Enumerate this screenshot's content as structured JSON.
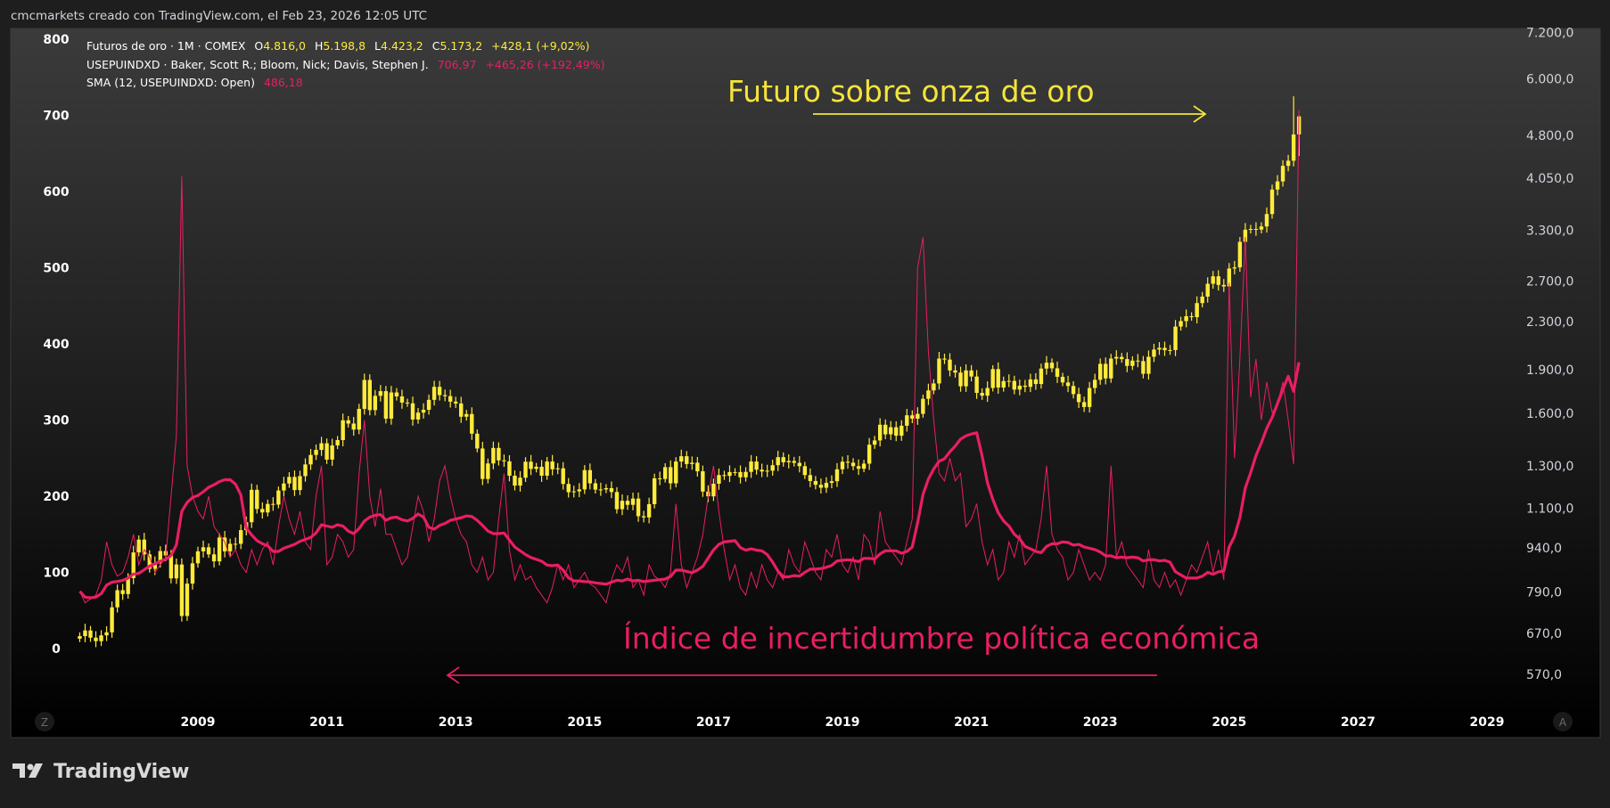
{
  "header": {
    "credit": "cmcmarkets creado con TradingView.com, el Feb 23, 2026 12:05 UTC"
  },
  "legend": {
    "gold": {
      "name": "Futuros de oro · 1M · COMEX",
      "o_label": "O",
      "o": "4.816,0",
      "h_label": "H",
      "h": "5.198,8",
      "l_label": "L",
      "l": "4.423,2",
      "c_label": "C",
      "c": "5.173,2",
      "change": "+428,1 (+9,02%)"
    },
    "epu": {
      "name": "USEPUINDXD · Baker, Scott R.; Bloom, Nick; Davis, Stephen J.",
      "value": "706,97",
      "change": "+465,26 (+192,49%)"
    },
    "sma": {
      "name": "SMA (12, USEPUINDXD: Open)",
      "value": "486,18"
    }
  },
  "annotations": {
    "gold": "Futuro sobre onza de oro",
    "epu": "Índice de incertidumbre política económica"
  },
  "axis_buttons": {
    "left": "Z",
    "right": "A"
  },
  "brand": "TradingView",
  "colors": {
    "gold": "#ffeb3b",
    "epu": "#e91e63",
    "sma": "#e91e63",
    "annotation_gold": "#f5e43a",
    "annotation_epu": "#e91e63"
  },
  "chart_data": {
    "type": "candlestick+line",
    "start_month": "2007-03",
    "frequency": "monthly",
    "x_ticks": [
      "2009",
      "2011",
      "2013",
      "2015",
      "2017",
      "2019",
      "2021",
      "2023",
      "2025",
      "2027",
      "2029"
    ],
    "left_axis": {
      "scale": "linear",
      "range": [
        0,
        800
      ],
      "ticks": [
        "0",
        "100",
        "200",
        "300",
        "400",
        "500",
        "600",
        "700",
        "800"
      ]
    },
    "right_axis": {
      "scale": "log",
      "range": [
        570,
        7200
      ],
      "ticks": [
        {
          "v": 7200,
          "label": "7.200,0"
        },
        {
          "v": 6000,
          "label": "6.000,0"
        },
        {
          "v": 4800,
          "label": "4.800,0"
        },
        {
          "v": 4050,
          "label": "4.050,0"
        },
        {
          "v": 3300,
          "label": "3.300,0"
        },
        {
          "v": 2700,
          "label": "2.700,0"
        },
        {
          "v": 2300,
          "label": "2.300,0"
        },
        {
          "v": 1900,
          "label": "1.900,0"
        },
        {
          "v": 1600,
          "label": "1.600,0"
        },
        {
          "v": 1300,
          "label": "1.300,0"
        },
        {
          "v": 1100,
          "label": "1.100,0"
        },
        {
          "v": 940,
          "label": "940,0"
        },
        {
          "v": 790,
          "label": "790,0"
        },
        {
          "v": 670,
          "label": "670,0"
        },
        {
          "v": 570,
          "label": "570,0"
        }
      ]
    },
    "gold_close": [
      663,
      678,
      659,
      650,
      665,
      673,
      743,
      795,
      783,
      834,
      923,
      971,
      916,
      865,
      885,
      928,
      912,
      833,
      880,
      718,
      816,
      884,
      927,
      942,
      916,
      891,
      979,
      927,
      955,
      955,
      1008,
      1040,
      1182,
      1096,
      1081,
      1118,
      1115,
      1179,
      1212,
      1244,
      1181,
      1248,
      1307,
      1357,
      1384,
      1421,
      1332,
      1409,
      1439,
      1556,
      1536,
      1500,
      1628,
      1825,
      1620,
      1714,
      1746,
      1566,
      1737,
      1710,
      1669,
      1664,
      1561,
      1604,
      1622,
      1687,
      1776,
      1719,
      1712,
      1675,
      1663,
      1578,
      1595,
      1476,
      1392,
      1234,
      1312,
      1395,
      1328,
      1323,
      1250,
      1202,
      1240,
      1321,
      1284,
      1295,
      1250,
      1322,
      1282,
      1287,
      1210,
      1171,
      1175,
      1184,
      1278,
      1213,
      1183,
      1184,
      1190,
      1172,
      1095,
      1132,
      1114,
      1142,
      1065,
      1060,
      1117,
      1237,
      1234,
      1293,
      1213,
      1322,
      1350,
      1309,
      1316,
      1272,
      1174,
      1152,
      1211,
      1253,
      1249,
      1268,
      1268,
      1242,
      1269,
      1322,
      1280,
      1271,
      1275,
      1303,
      1345,
      1318,
      1325,
      1315,
      1298,
      1253,
      1224,
      1206,
      1192,
      1215,
      1223,
      1282,
      1321,
      1316,
      1298,
      1285,
      1311,
      1413,
      1437,
      1529,
      1472,
      1514,
      1464,
      1523,
      1587,
      1566,
      1596,
      1694,
      1751,
      1800,
      1986,
      1978,
      1895,
      1879,
      1780,
      1895,
      1850,
      1734,
      1715,
      1768,
      1905,
      1771,
      1817,
      1818,
      1757,
      1784,
      1776,
      1829,
      1796,
      1909,
      1954,
      1911,
      1848,
      1807,
      1782,
      1726,
      1672,
      1640,
      1768,
      1826,
      1945,
      1836,
      1986,
      1999,
      1982,
      1929,
      1970,
      1966,
      1870,
      2000,
      2058,
      2072,
      2053,
      2054,
      2254,
      2303,
      2348,
      2339,
      2473,
      2537,
      2669,
      2749,
      2657,
      2641,
      2835,
      2848,
      3150,
      3305,
      3315,
      3307,
      3348,
      3516,
      3873,
      4000,
      4254,
      4341,
      4816,
      5173.2
    ],
    "gold_last_candle": {
      "o": 4816.0,
      "h": 5198.8,
      "l": 4423.2,
      "c": 5173.2
    },
    "epu": [
      75,
      60,
      65,
      70,
      90,
      140,
      110,
      95,
      100,
      120,
      150,
      110,
      130,
      120,
      100,
      110,
      120,
      200,
      280,
      620,
      240,
      200,
      180,
      170,
      200,
      160,
      150,
      140,
      120,
      130,
      110,
      100,
      130,
      110,
      130,
      140,
      110,
      160,
      200,
      170,
      150,
      180,
      140,
      130,
      200,
      240,
      110,
      120,
      150,
      140,
      120,
      130,
      230,
      300,
      200,
      160,
      210,
      150,
      150,
      130,
      110,
      120,
      160,
      200,
      180,
      140,
      170,
      220,
      240,
      200,
      170,
      150,
      140,
      110,
      100,
      120,
      90,
      100,
      170,
      230,
      130,
      90,
      110,
      90,
      95,
      80,
      70,
      60,
      80,
      110,
      90,
      110,
      80,
      90,
      100,
      85,
      80,
      70,
      60,
      90,
      110,
      100,
      120,
      80,
      90,
      70,
      110,
      95,
      90,
      80,
      100,
      190,
      110,
      80,
      100,
      120,
      150,
      200,
      240,
      180,
      130,
      90,
      110,
      80,
      70,
      100,
      80,
      110,
      90,
      80,
      100,
      90,
      130,
      110,
      100,
      140,
      120,
      100,
      90,
      130,
      120,
      150,
      110,
      100,
      120,
      90,
      150,
      140,
      110,
      180,
      140,
      130,
      120,
      110,
      140,
      170,
      500,
      540,
      390,
      300,
      230,
      220,
      250,
      220,
      230,
      160,
      170,
      190,
      140,
      110,
      130,
      90,
      100,
      140,
      120,
      150,
      110,
      120,
      130,
      170,
      240,
      150,
      130,
      120,
      90,
      100,
      130,
      110,
      90,
      100,
      90,
      110,
      240,
      120,
      140,
      110,
      100,
      90,
      80,
      130,
      90,
      80,
      100,
      80,
      90,
      70,
      90,
      110,
      100,
      120,
      140,
      100,
      130,
      90,
      480,
      250,
      380,
      540,
      330,
      380,
      300,
      350,
      310,
      320,
      350,
      300,
      242,
      706.97
    ],
    "sma_period": 12
  }
}
